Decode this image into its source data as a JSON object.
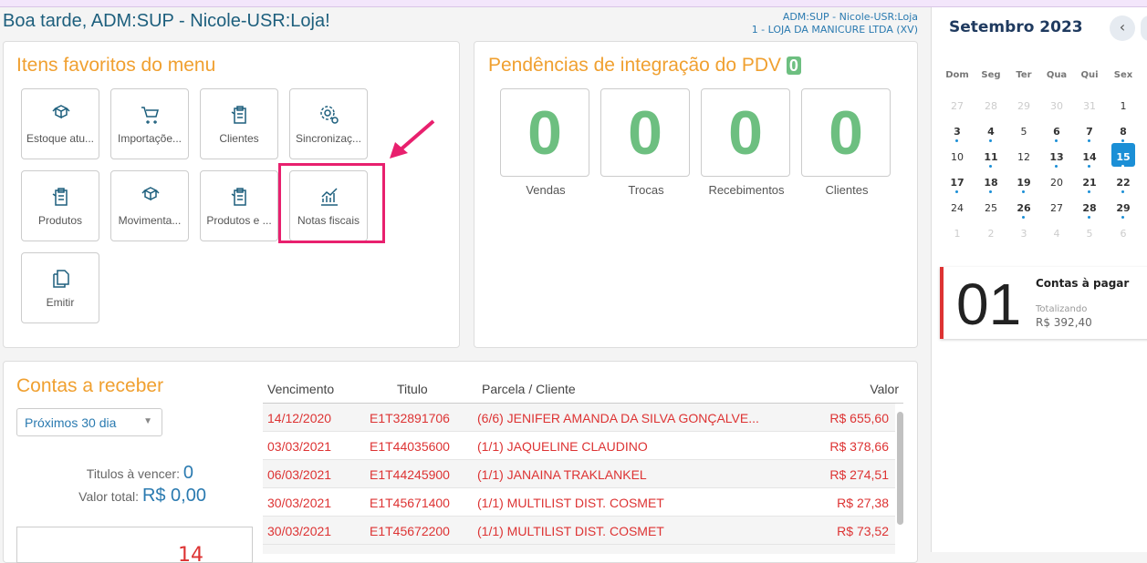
{
  "header": {
    "greeting": "Boa tarde, ADM:SUP - Nicole-USR:Loja!",
    "user": "ADM:SUP - Nicole-USR:Loja",
    "store": "1 - LOJA DA MANICURE LTDA (XV)"
  },
  "favorites": {
    "title": "Itens favoritos do menu",
    "items": [
      "Estoque atu...",
      "Importaçõe...",
      "Clientes",
      "Sincronizaç...",
      "Produtos",
      "Movimenta...",
      "Produtos e ...",
      "Notas fiscais",
      "Emitir"
    ]
  },
  "pending": {
    "title": "Pendências de integração do PDV",
    "badge": "0",
    "boxes": [
      {
        "value": "0",
        "label": "Vendas"
      },
      {
        "value": "0",
        "label": "Trocas"
      },
      {
        "value": "0",
        "label": "Recebimentos"
      },
      {
        "value": "0",
        "label": "Clientes"
      }
    ]
  },
  "receivables": {
    "title": "Contas a receber",
    "filter": "Próximos 30 dia",
    "due_label": "Titulos à vencer:",
    "due_value": "0",
    "total_label": "Valor total:",
    "total_value": "R$ 0,00",
    "partial": "14",
    "table": {
      "headers": [
        "Vencimento",
        "Titulo",
        "Parcela / Cliente",
        "Valor"
      ],
      "rows": [
        [
          "14/12/2020",
          "E1T32891706",
          "(6/6) JENIFER AMANDA DA SILVA GONÇALVE...",
          "R$ 655,60"
        ],
        [
          "03/03/2021",
          "E1T44035600",
          "(1/1) JAQUELINE CLAUDINO",
          "R$ 378,66"
        ],
        [
          "06/03/2021",
          "E1T44245900",
          "(1/1) JANAINA TRAKLANKEL",
          "R$ 274,51"
        ],
        [
          "30/03/2021",
          "E1T45671400",
          "(1/1) MULTILIST DIST. COSMET",
          "R$ 27,38"
        ],
        [
          "30/03/2021",
          "E1T45672200",
          "(1/1) MULTILIST DIST. COSMET",
          "R$ 73,52"
        ]
      ]
    }
  },
  "calendar": {
    "title": "Setembro 2023",
    "nav": "‹",
    "weekdays": [
      "Dom",
      "Seg",
      "Ter",
      "Qua",
      "Qui",
      "Sex"
    ],
    "weeks": [
      [
        "27",
        "28",
        "29",
        "30",
        "31",
        "1"
      ],
      [
        "3",
        "4",
        "5",
        "6",
        "7",
        "8"
      ],
      [
        "10",
        "11",
        "12",
        "13",
        "14",
        "15"
      ],
      [
        "17",
        "18",
        "19",
        "20",
        "21",
        "22"
      ],
      [
        "24",
        "25",
        "26",
        "27",
        "28",
        "29"
      ],
      [
        "1",
        "2",
        "3",
        "4",
        "5",
        "6"
      ]
    ]
  },
  "payables": {
    "count": "01",
    "title": "Contas à pagar",
    "subtitle": "Totalizando",
    "amount": "R$ 392,40"
  }
}
